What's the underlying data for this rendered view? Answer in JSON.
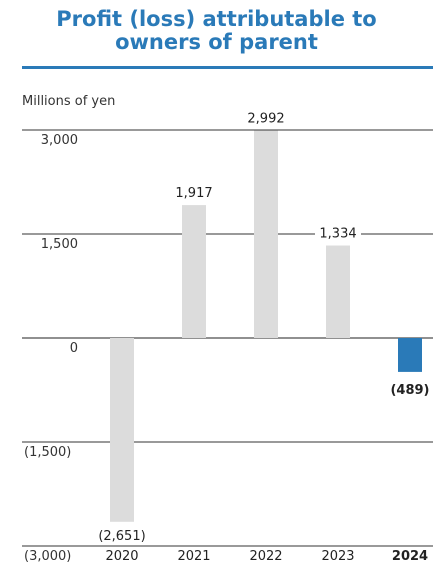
{
  "title": "Profit (loss) attributable to owners of parent",
  "title_lines": [
    "Profit (loss) attributable to",
    "owners of parent"
  ],
  "colors": {
    "accent": "#2a7ab8",
    "bar": "#dcdcdc",
    "highlight_bar": "#2a7ab8",
    "text": "#333333"
  },
  "chart_data": {
    "type": "bar",
    "unit_label": "Millions of yen",
    "categories": [
      "2020",
      "2021",
      "2022",
      "2023",
      "2024"
    ],
    "values": [
      -2651,
      1917,
      2992,
      1334,
      -489
    ],
    "value_labels": [
      "(2,651)",
      "1,917",
      "2,992",
      "1,334",
      "(489)"
    ],
    "highlight_index": 4,
    "yticks": [
      3000,
      1500,
      0,
      -1500,
      -3000
    ],
    "ytick_labels": [
      "3,000",
      "1,500",
      "0",
      "(1,500)",
      "(3,000)"
    ],
    "ylim": [
      -3000,
      3000
    ],
    "grid": true
  }
}
